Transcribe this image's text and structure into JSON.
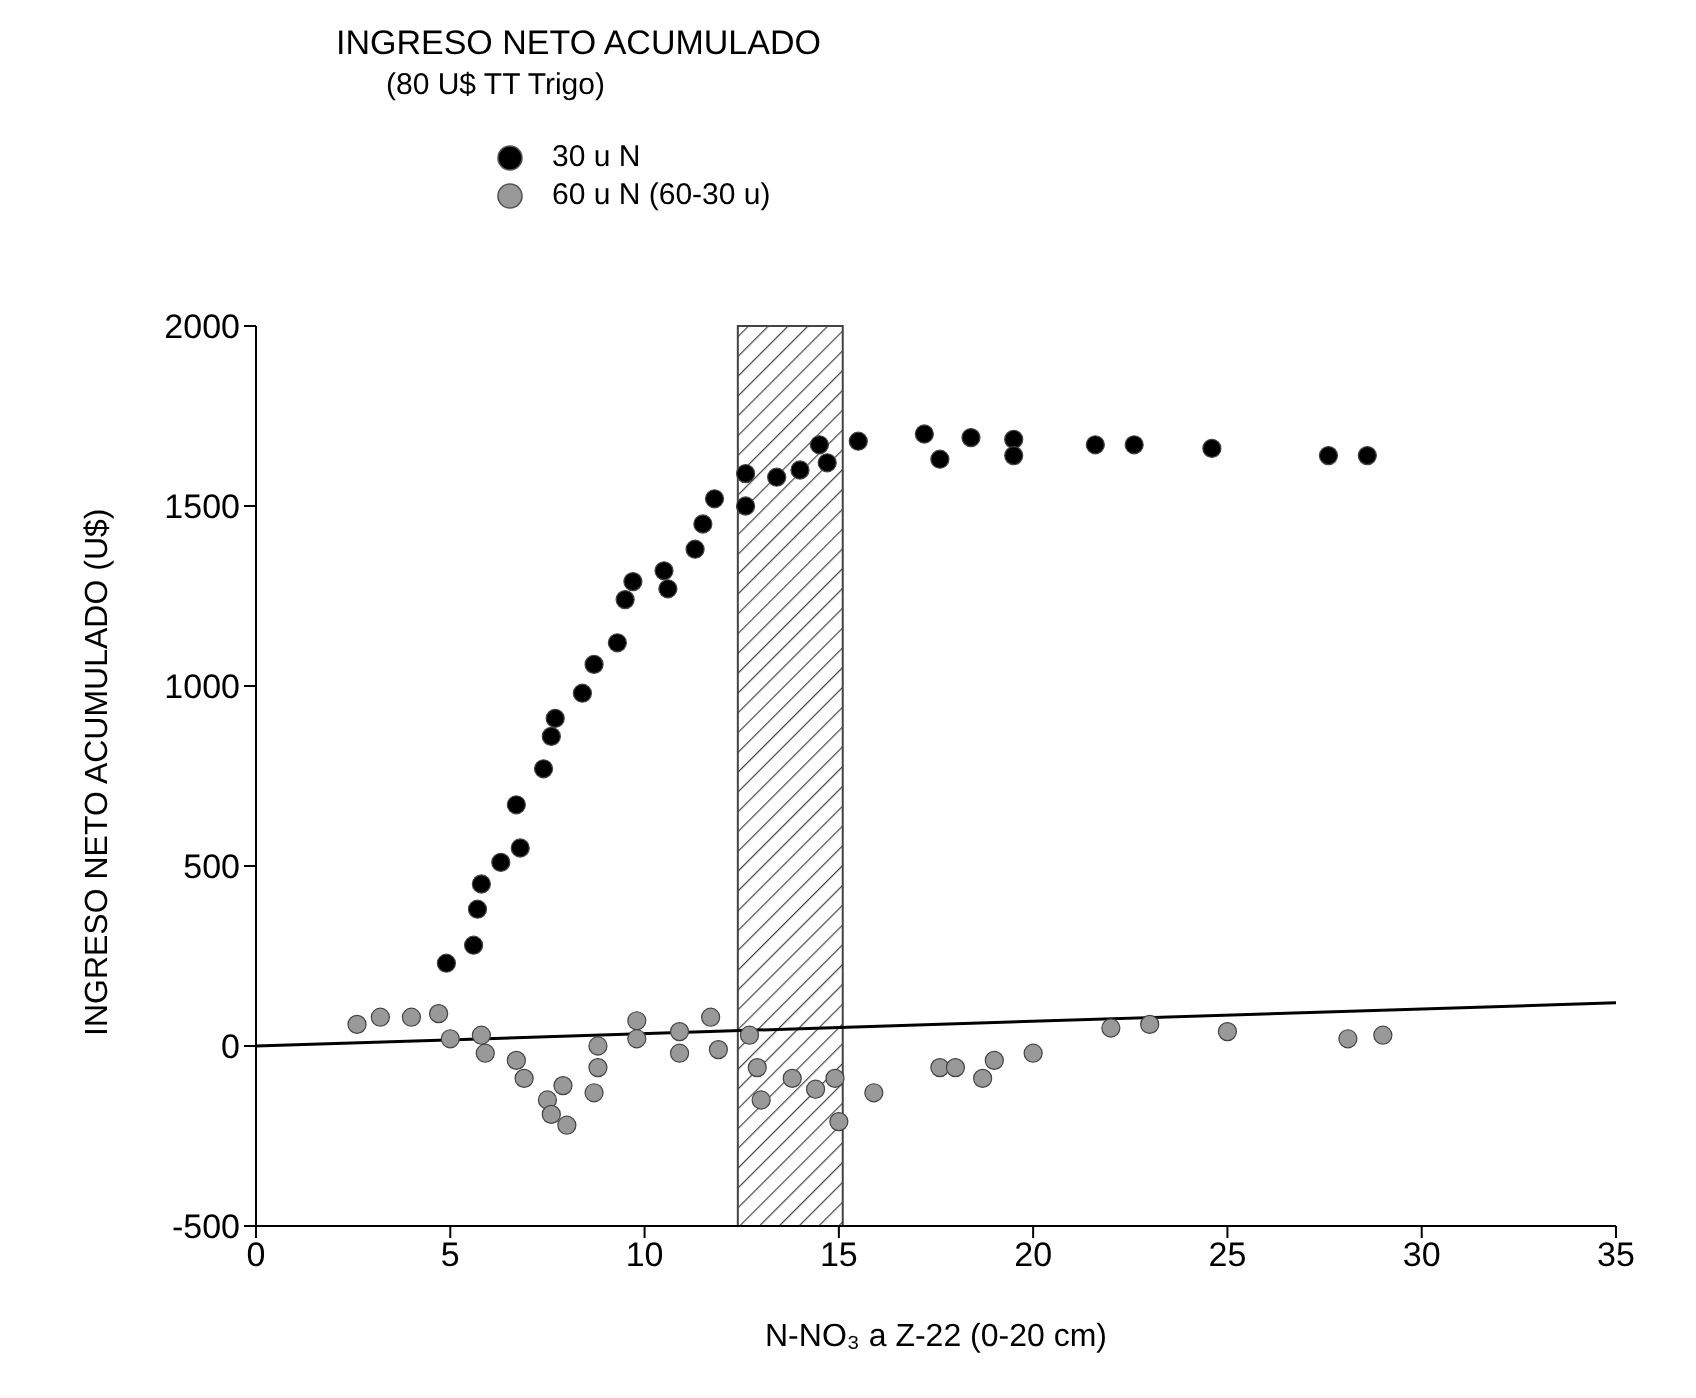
{
  "chart_data": {
    "type": "scatter",
    "title": "INGRESO NETO ACUMULADO",
    "subtitle": "(80 U$ TT Trigo)",
    "xlabel": "N-NO₃ a Z-22  (0-20 cm)",
    "ylabel": "INGRESO NETO ACUMULADO (U$)",
    "xlim": [
      0,
      35
    ],
    "xticks": [
      0,
      5,
      10,
      15,
      20,
      25,
      30,
      35
    ],
    "ylim": [
      -500,
      2000
    ],
    "yticks": [
      -500,
      0,
      500,
      1000,
      1500,
      2000
    ],
    "grid": false,
    "legend": "top left",
    "marker": "circle",
    "bands": [
      {
        "axis": "x",
        "from": 12.4,
        "to": 15.1,
        "color": "#444444"
      }
    ],
    "series": [
      {
        "name": "30 u N",
        "color": "#000000",
        "x": [
          4.9,
          5.6,
          5.7,
          5.8,
          6.3,
          6.8,
          6.7,
          7.4,
          7.6,
          7.7,
          8.4,
          8.7,
          9.3,
          9.5,
          9.7,
          10.6,
          10.5,
          11.3,
          11.5,
          11.8,
          12.6,
          12.6,
          13.4,
          14.0,
          14.5,
          14.7,
          15.5,
          17.2,
          17.6,
          18.4,
          19.5,
          19.5,
          21.6,
          22.6,
          24.6,
          27.6,
          28.6
        ],
        "values": [
          230,
          280,
          380,
          450,
          510,
          550,
          670,
          770,
          860,
          910,
          980,
          1060,
          1120,
          1240,
          1290,
          1270,
          1320,
          1380,
          1450,
          1520,
          1590,
          1500,
          1580,
          1600,
          1670,
          1620,
          1680,
          1700,
          1630,
          1690,
          1685,
          1640,
          1670,
          1670,
          1660,
          1640,
          1640
        ]
      },
      {
        "name": "60 u N (60-30 u)",
        "color": "#999999",
        "x": [
          2.6,
          3.2,
          4.0,
          4.7,
          5.0,
          5.8,
          5.9,
          6.7,
          6.9,
          7.5,
          7.6,
          8.0,
          7.9,
          8.7,
          8.8,
          8.8,
          9.8,
          9.8,
          10.9,
          10.9,
          11.7,
          11.9,
          12.7,
          12.9,
          13.0,
          13.8,
          14.4,
          14.9,
          15.0,
          15.9,
          17.6,
          18.0,
          18.7,
          19.0,
          20.0,
          22.0,
          23.0,
          25.0,
          28.1,
          29.0
        ],
        "values": [
          60,
          80,
          80,
          90,
          20,
          30,
          -20,
          -40,
          -90,
          -150,
          -190,
          -220,
          -110,
          -130,
          0,
          -60,
          70,
          20,
          40,
          -20,
          80,
          -10,
          30,
          -60,
          -150,
          -90,
          -120,
          -90,
          -210,
          -130,
          -60,
          -60,
          -90,
          -40,
          -20,
          50,
          60,
          40,
          20,
          30
        ]
      },
      {
        "type": "line",
        "marker": "none",
        "color": "#000000",
        "x": [
          0,
          35
        ],
        "values": [
          0,
          120
        ]
      }
    ]
  }
}
